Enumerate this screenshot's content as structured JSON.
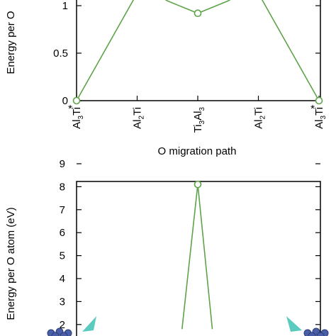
{
  "style": {
    "line_color": "#5ea34a",
    "axis_color": "#000000",
    "marker_fill": "#ffffff",
    "decoration_blue": "#4a5fa8",
    "decoration_teal": "#3fc2b4"
  },
  "chart_data": [
    {
      "type": "line",
      "xlabel": "O migration path",
      "ylabel": "Energy per O",
      "ylim": [
        0,
        1.2
      ],
      "yticks": [
        {
          "value": 0,
          "label": "0"
        },
        {
          "value": 0.5,
          "label": "0.5"
        },
        {
          "value": 1,
          "label": "1"
        }
      ],
      "categories": [
        {
          "base": "Al",
          "sub": "3",
          "rest": "Ti",
          "sup": "*"
        },
        {
          "base": "Al",
          "sub": "2",
          "rest": "Ti",
          "sup": ""
        },
        {
          "base": "Ti",
          "sub": "3",
          "rest": "Al",
          "sub2": "3",
          "sup": ""
        },
        {
          "base": "Al",
          "sub": "2",
          "rest": "Ti",
          "sup": ""
        },
        {
          "base": "Al",
          "sub": "3",
          "rest": "Ti",
          "sup": "*"
        }
      ],
      "points": [
        {
          "x": 0,
          "y": 0,
          "marker": true
        },
        {
          "x": 1.07,
          "y": 1.21,
          "marker": false
        },
        {
          "x": 1.5,
          "y": 1.05,
          "marker": false
        },
        {
          "x": 2.0,
          "y": 0.92,
          "marker": true
        },
        {
          "x": 2.5,
          "y": 1.05,
          "marker": false
        },
        {
          "x": 2.93,
          "y": 1.21,
          "marker": false
        },
        {
          "x": 4,
          "y": 0,
          "marker": true
        }
      ]
    },
    {
      "type": "line",
      "xlabel": "",
      "ylabel": "Energy per O atom (eV)",
      "ylim": [
        1.8,
        9
      ],
      "yticks": [
        {
          "value": 2,
          "label": "2"
        },
        {
          "value": 3,
          "label": "3"
        },
        {
          "value": 4,
          "label": "4"
        },
        {
          "value": 5,
          "label": "5"
        },
        {
          "value": 6,
          "label": "6"
        },
        {
          "value": 7,
          "label": "7"
        },
        {
          "value": 8,
          "label": "8"
        },
        {
          "value": 9,
          "label": "9"
        }
      ],
      "points": [
        {
          "x": 1.74,
          "y": 1.8,
          "marker": false
        },
        {
          "x": 2.0,
          "y": 8.1,
          "marker": true
        },
        {
          "x": 2.24,
          "y": 1.8,
          "marker": false
        }
      ]
    }
  ]
}
